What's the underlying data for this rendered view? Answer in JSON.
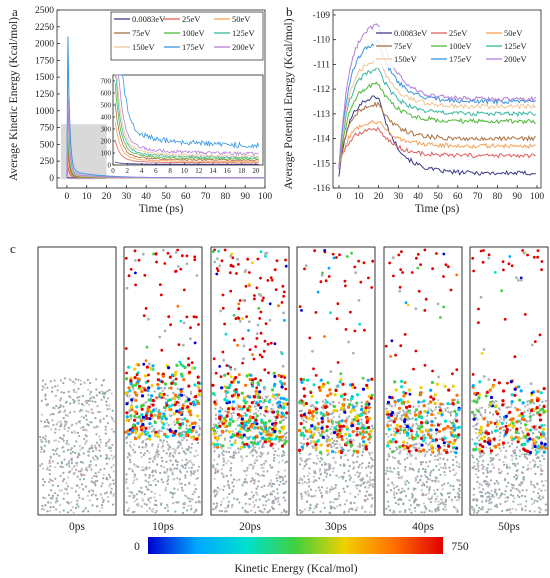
{
  "panel_letters": [
    "a",
    "b",
    "c"
  ],
  "chart_data": [
    {
      "type": "line",
      "xlabel": "Time (ps)",
      "ylabel": "Average Kinetic Energy (Kcal/mol)",
      "xlim": [
        -5,
        100
      ],
      "ylim": [
        -150,
        2500
      ],
      "xticks": [
        0,
        10,
        20,
        30,
        40,
        50,
        60,
        70,
        80,
        90,
        100
      ],
      "yticks": [
        0,
        250,
        500,
        750,
        1000,
        1250,
        1500,
        1750,
        2000,
        2250,
        2500
      ],
      "legend_position": "top-right",
      "highlight_region": {
        "x": [
          -3,
          20
        ],
        "y": [
          -20,
          800
        ]
      },
      "series": [
        {
          "name": "0.0083eV",
          "peak": 5,
          "color": "#3c3b8a"
        },
        {
          "name": "25eV",
          "peak": 180,
          "color": "#e0615b"
        },
        {
          "name": "50eV",
          "peak": 330,
          "color": "#f4a259"
        },
        {
          "name": "75eV",
          "peak": 480,
          "color": "#a9703f"
        },
        {
          "name": "100eV",
          "peak": 640,
          "color": "#52b83b"
        },
        {
          "name": "125eV",
          "peak": 800,
          "color": "#3bb6a0"
        },
        {
          "name": "150eV",
          "peak": 950,
          "color": "#f0c596"
        },
        {
          "name": "175eV",
          "peak": 2230,
          "color": "#3a95e0"
        },
        {
          "name": "200eV",
          "peak": 1250,
          "color": "#b17fd9"
        }
      ],
      "inset": {
        "xlim": [
          0,
          21
        ],
        "ylim": [
          0,
          750
        ],
        "xticks": [
          0,
          2,
          4,
          6,
          8,
          10,
          12,
          14,
          16,
          18,
          20
        ],
        "yticks": [
          0,
          100,
          200,
          300,
          400,
          500,
          600,
          700
        ]
      }
    },
    {
      "type": "line",
      "xlabel": "Time (ps)",
      "ylabel": "Average Potential Energy (Kcal/mol)",
      "xlim": [
        -3,
        102
      ],
      "ylim": [
        -116,
        -108.8
      ],
      "xticks": [
        0,
        10,
        20,
        30,
        40,
        50,
        60,
        70,
        80,
        90,
        100
      ],
      "yticks": [
        -116,
        -115,
        -114,
        -113,
        -112,
        -111,
        -110,
        -109
      ],
      "legend_position": "top-right",
      "series": [
        {
          "name": "0.0083eV",
          "start": -115.5,
          "peak": -112.3,
          "final": -115.4,
          "color": "#3c3b8a"
        },
        {
          "name": "25eV",
          "start": -115.2,
          "peak": -113.6,
          "final": -114.7,
          "color": "#e0615b"
        },
        {
          "name": "50eV",
          "start": -115.2,
          "peak": -113.3,
          "final": -114.3,
          "color": "#f4a259"
        },
        {
          "name": "75eV",
          "start": -115.2,
          "peak": -112.6,
          "final": -114.0,
          "color": "#a9703f"
        },
        {
          "name": "100eV",
          "start": -115.2,
          "peak": -111.8,
          "final": -113.3,
          "color": "#52b83b"
        },
        {
          "name": "125eV",
          "start": -115.2,
          "peak": -111.2,
          "final": -113.0,
          "color": "#3bb6a0"
        },
        {
          "name": "150eV",
          "start": -115.2,
          "peak": -110.8,
          "final": -112.7,
          "color": "#f0c596"
        },
        {
          "name": "175eV",
          "start": -115.2,
          "peak": -110.1,
          "final": -112.5,
          "color": "#3a95e0"
        },
        {
          "name": "200eV",
          "start": -115.2,
          "peak": -109.4,
          "final": -112.4,
          "color": "#b17fd9"
        }
      ]
    }
  ],
  "snapshots": {
    "labels": [
      "0ps",
      "10ps",
      "20ps",
      "30ps",
      "40ps",
      "50ps"
    ],
    "colorbar": {
      "min_label": "0",
      "max_label": "750",
      "label": "Kinetic Energy (Kcal/mol)",
      "colors": [
        "#0000d0",
        "#00a8ff",
        "#00e0d0",
        "#40d040",
        "#f0d000",
        "#ff7000",
        "#e00000"
      ]
    }
  }
}
